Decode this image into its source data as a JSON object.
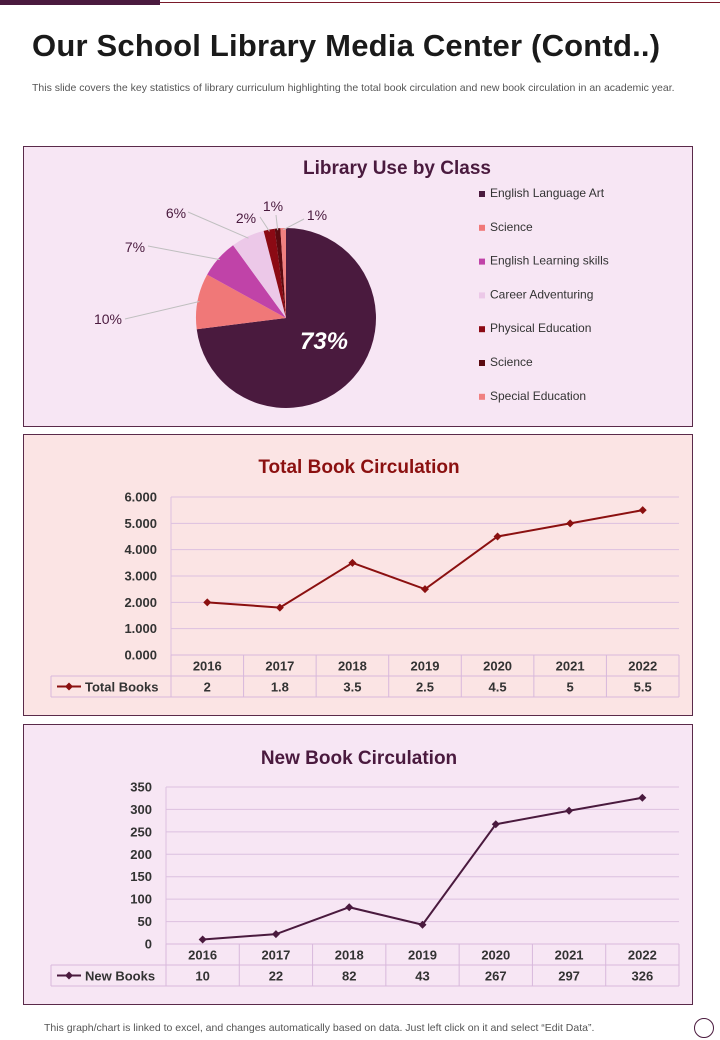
{
  "page": {
    "title": "Our School Library Media Center (Contd..)",
    "description": "This slide covers the key statistics of library curriculum highlighting the total book circulation and new book circulation in an academic year.",
    "footer": "This graph/chart is linked to excel,  and changes automatically based on data. Just left click on it and select “Edit Data”."
  },
  "colors": {
    "accent_dark": "#4a1a3e",
    "accent_red": "#8b1010",
    "panel_pink": "#f7e6f4",
    "panel_peach": "#fbe4e4"
  },
  "chart_data": [
    {
      "type": "pie",
      "title": "Library Use by Class",
      "slices": [
        {
          "label": "English Language Art",
          "value": 73,
          "display": "73%",
          "color": "#4a1a3e"
        },
        {
          "label": "Science",
          "value": 10,
          "display": "10%",
          "color": "#f07878"
        },
        {
          "label": "English Learning skills",
          "value": 7,
          "display": "7%",
          "color": "#c043a8"
        },
        {
          "label": "Career Adventuring",
          "value": 6,
          "display": "6%",
          "color": "#ecc8e8"
        },
        {
          "label": "Physical Education",
          "value": 2,
          "display": "2%",
          "color": "#8b0a14"
        },
        {
          "label": "Science",
          "value": 1,
          "display": "1%",
          "color": "#5a0a10"
        },
        {
          "label": "Special Education",
          "value": 1,
          "display": "1%",
          "color": "#f08080"
        }
      ],
      "legend_position": "right"
    },
    {
      "type": "line",
      "title": "Total Book Circulation",
      "categories": [
        "2016",
        "2017",
        "2018",
        "2019",
        "2020",
        "2021",
        "2022"
      ],
      "series": [
        {
          "name": "Total Books",
          "values": [
            2,
            1.8,
            3.5,
            2.5,
            4.5,
            5,
            5.5
          ],
          "display": [
            "2",
            "1.8",
            "3.5",
            "2.5",
            "4.5",
            "5",
            "5.5"
          ],
          "color": "#8b1010"
        }
      ],
      "y_ticks": [
        "0.000",
        "1.000",
        "2.000",
        "3.000",
        "4.000",
        "5.000",
        "6.000"
      ],
      "ylim": [
        0,
        6
      ],
      "grid": true,
      "data_table": true
    },
    {
      "type": "line",
      "title": "New Book Circulation",
      "categories": [
        "2016",
        "2017",
        "2018",
        "2019",
        "2020",
        "2021",
        "2022"
      ],
      "series": [
        {
          "name": "New Books",
          "values": [
            10,
            22,
            82,
            43,
            267,
            297,
            326
          ],
          "display": [
            "10",
            "22",
            "82",
            "43",
            "267",
            "297",
            "326"
          ],
          "color": "#4a1a3e"
        }
      ],
      "y_ticks": [
        "0",
        "50",
        "100",
        "150",
        "200",
        "250",
        "300",
        "350"
      ],
      "ylim": [
        0,
        350
      ],
      "grid": true,
      "data_table": true
    }
  ]
}
